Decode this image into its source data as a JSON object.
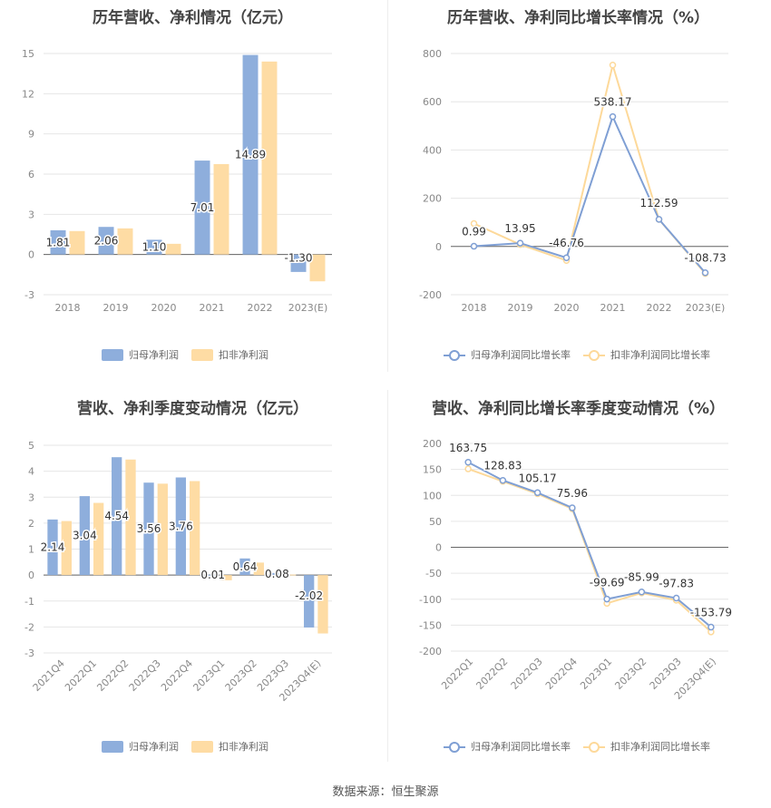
{
  "footer": {
    "source": "数据来源：恒生聚源"
  },
  "colors": {
    "blue": "#8eaedc",
    "orange": "#fedca4",
    "blueLine": "#7f9fd4",
    "orangeLine": "#fdd99a",
    "grid": "#e6e6e6",
    "axis": "#888888",
    "label": "#333333"
  },
  "chart_data": [
    {
      "id": "c1",
      "type": "bar",
      "title": "历年营收、净利情况（亿元）",
      "categories": [
        "2018",
        "2019",
        "2020",
        "2021",
        "2022",
        "2023(E)"
      ],
      "series": [
        {
          "name": "归母净利润",
          "values": [
            1.81,
            2.06,
            1.1,
            7.01,
            14.89,
            -1.3
          ]
        },
        {
          "name": "扣非净利润",
          "values": [
            1.75,
            1.95,
            0.8,
            6.75,
            14.4,
            -2.0
          ]
        }
      ],
      "data_labels": [
        "1.81",
        "2.06",
        "1.10",
        "7.01",
        "14.89",
        "-1.30"
      ],
      "yticks": [
        -3,
        0,
        3,
        6,
        9,
        12,
        15
      ],
      "ylim": [
        -3,
        15
      ],
      "legend": "bottom-center"
    },
    {
      "id": "c2",
      "type": "line",
      "title": "历年营收、净利同比增长率情况（%）",
      "categories": [
        "2018",
        "2019",
        "2020",
        "2021",
        "2022",
        "2023(E)"
      ],
      "series": [
        {
          "name": "归母净利润同比增长率",
          "values": [
            0.99,
            13.95,
            -46.76,
            538.17,
            112.59,
            -108.73
          ]
        },
        {
          "name": "扣非净利润同比增长率",
          "values": [
            95,
            8,
            -58,
            752,
            112,
            -112
          ]
        }
      ],
      "data_labels": [
        "0.99",
        "13.95",
        "-46.76",
        "538.17",
        "112.59",
        "-108.73"
      ],
      "yticks": [
        -200,
        0,
        200,
        400,
        600,
        800
      ],
      "ylim": [
        -200,
        800
      ],
      "legend": "bottom-center"
    },
    {
      "id": "c3",
      "type": "bar",
      "title": "营收、净利季度变动情况（亿元）",
      "categories": [
        "2021Q4",
        "2022Q1",
        "2022Q2",
        "2022Q3",
        "2022Q4",
        "2023Q1",
        "2023Q2",
        "2023Q3",
        "2023Q4(E)"
      ],
      "series": [
        {
          "name": "归母净利润",
          "values": [
            2.14,
            3.04,
            4.54,
            3.56,
            3.76,
            0.01,
            0.64,
            0.08,
            -2.02
          ]
        },
        {
          "name": "扣非净利润",
          "values": [
            2.08,
            2.78,
            4.45,
            3.52,
            3.62,
            -0.2,
            0.48,
            0.02,
            -2.25
          ]
        }
      ],
      "data_labels": [
        "2.14",
        "3.04",
        "4.54",
        "3.56",
        "3.76",
        "0.01",
        "0.64",
        "0.08",
        "-2.02"
      ],
      "yticks": [
        -3,
        -2,
        -1,
        0,
        1,
        2,
        3,
        4,
        5
      ],
      "ylim": [
        -3,
        5
      ],
      "legend": "bottom-center"
    },
    {
      "id": "c4",
      "type": "line",
      "title": "营收、净利同比增长率季度变动情况（%）",
      "categories": [
        "2022Q1",
        "2022Q2",
        "2022Q3",
        "2022Q4",
        "2023Q1",
        "2023Q2",
        "2023Q3",
        "2023Q4(E)"
      ],
      "series": [
        {
          "name": "归母净利润同比增长率",
          "values": [
            163.75,
            128.83,
            105.17,
            75.96,
            -99.69,
            -85.99,
            -97.83,
            -153.79
          ]
        },
        {
          "name": "扣非净利润同比增长率",
          "values": [
            151,
            127,
            103,
            74,
            -108,
            -88,
            -102,
            -163
          ]
        }
      ],
      "data_labels": [
        "163.75",
        "128.83",
        "105.17",
        "75.96",
        "-99.69",
        "-85.99",
        "-97.83",
        "-153.79"
      ],
      "yticks": [
        -200,
        -150,
        -100,
        -50,
        0,
        50,
        100,
        150,
        200
      ],
      "ylim": [
        -200,
        200
      ],
      "legend": "bottom-center"
    }
  ]
}
